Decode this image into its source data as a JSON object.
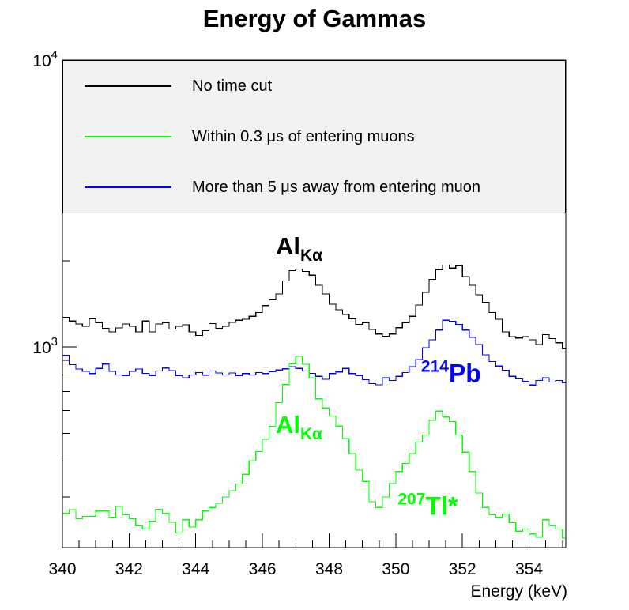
{
  "title": "Energy of Gammas",
  "colors": {
    "no_time_cut": "#000000",
    "within_cut": "#00ff00",
    "away_cut": "#0000ff",
    "legend_bg": "#f2f2f2",
    "frame": "#000000"
  },
  "legend": {
    "entries": [
      {
        "label": "No time cut",
        "color": "#000000"
      },
      {
        "label": "Within 0.3 μs of entering muons",
        "color": "#00ff00"
      },
      {
        "label": "More than 5 μs away from entering muon",
        "color": "#0000ff"
      }
    ]
  },
  "annotations": [
    {
      "id": "al-ka-black",
      "main": "Al",
      "sub": "Kα",
      "color": "#000000",
      "x_kev": 347.1,
      "value": 2200
    },
    {
      "id": "pb-214-blue",
      "sup": "214",
      "main": "Pb",
      "color": "#0000ff",
      "x_kev": 351.66,
      "value": 815
    },
    {
      "id": "al-ka-green",
      "main": "Al",
      "sub": "Kα",
      "color": "#00ff00",
      "x_kev": 347.1,
      "value": 525
    },
    {
      "id": "tl-207-green",
      "sup": "207",
      "main": "Tl*",
      "color": "#00ff00",
      "x_kev": 350.96,
      "value": 282
    }
  ],
  "chart_data": {
    "type": "line",
    "style": "histogram-step",
    "title": "Energy of Gammas",
    "xlabel": "Energy (keV)",
    "ylabel": "",
    "x_range": [
      340.0,
      355.1
    ],
    "y_range": [
      200,
      10000
    ],
    "y_scale": "log",
    "x_start": 340.0,
    "bin_width": 0.2,
    "x_major_ticks": [
      340,
      342,
      344,
      346,
      348,
      350,
      352,
      354
    ],
    "x_minor_step": 0.5,
    "y_major_ticks": [
      {
        "value": 1000,
        "base": "10",
        "exp": "3"
      },
      {
        "value": 10000,
        "base": "10",
        "exp": "4"
      }
    ],
    "grid": false,
    "legend_position": "top-inside-full-width",
    "series": [
      {
        "name": "No time cut",
        "color": "#000000",
        "values": [
          1270,
          1232,
          1203,
          1180,
          1255,
          1216,
          1160,
          1130,
          1165,
          1203,
          1180,
          1130,
          1232,
          1130,
          1203,
          1216,
          1155,
          1180,
          1195,
          1130,
          1098,
          1140,
          1206,
          1160,
          1180,
          1220,
          1240,
          1250,
          1280,
          1320,
          1395,
          1460,
          1530,
          1700,
          1845,
          1870,
          1835,
          1780,
          1640,
          1530,
          1410,
          1349,
          1300,
          1255,
          1200,
          1216,
          1150,
          1110,
          1090,
          1110,
          1168,
          1216,
          1280,
          1400,
          1550,
          1720,
          1860,
          1930,
          1885,
          1920,
          1760,
          1640,
          1520,
          1430,
          1320,
          1250,
          1130,
          1085,
          1075,
          1085,
          1060,
          1020,
          1105,
          1070,
          1035,
          985
        ]
      },
      {
        "name": "Within 0.3 μs of entering muons",
        "color": "#00ff00",
        "values": [
          263,
          271,
          252,
          257,
          257,
          268,
          268,
          255,
          278,
          260,
          252,
          238,
          232,
          247,
          272,
          263,
          245,
          225,
          250,
          236,
          250,
          268,
          276,
          285,
          300,
          316,
          333,
          360,
          402,
          432,
          477,
          529,
          640,
          740,
          875,
          927,
          870,
          782,
          660,
          613,
          575,
          530,
          480,
          425,
          372,
          340,
          289,
          276,
          300,
          334,
          368,
          393,
          425,
          466,
          494,
          556,
          598,
          570,
          550,
          494,
          430,
          368,
          310,
          276,
          260,
          255,
          262,
          244,
          228,
          232,
          223,
          217,
          250,
          238,
          232,
          216
        ]
      },
      {
        "name": "More than 5 μs away from entering muon",
        "color": "#0000ff",
        "values": [
          935,
          868,
          838,
          822,
          808,
          842,
          872,
          822,
          800,
          795,
          822,
          838,
          810,
          795,
          825,
          845,
          828,
          795,
          780,
          800,
          815,
          798,
          825,
          812,
          800,
          812,
          795,
          808,
          800,
          815,
          808,
          820,
          832,
          840,
          855,
          842,
          825,
          810,
          790,
          772,
          808,
          818,
          842,
          808,
          795,
          770,
          745,
          738,
          780,
          765,
          790,
          815,
          855,
          905,
          995,
          1060,
          1145,
          1240,
          1230,
          1200,
          1145,
          1080,
          1020,
          940,
          890,
          858,
          830,
          790,
          775,
          760,
          737,
          765,
          780,
          755,
          765,
          750
        ]
      }
    ]
  }
}
